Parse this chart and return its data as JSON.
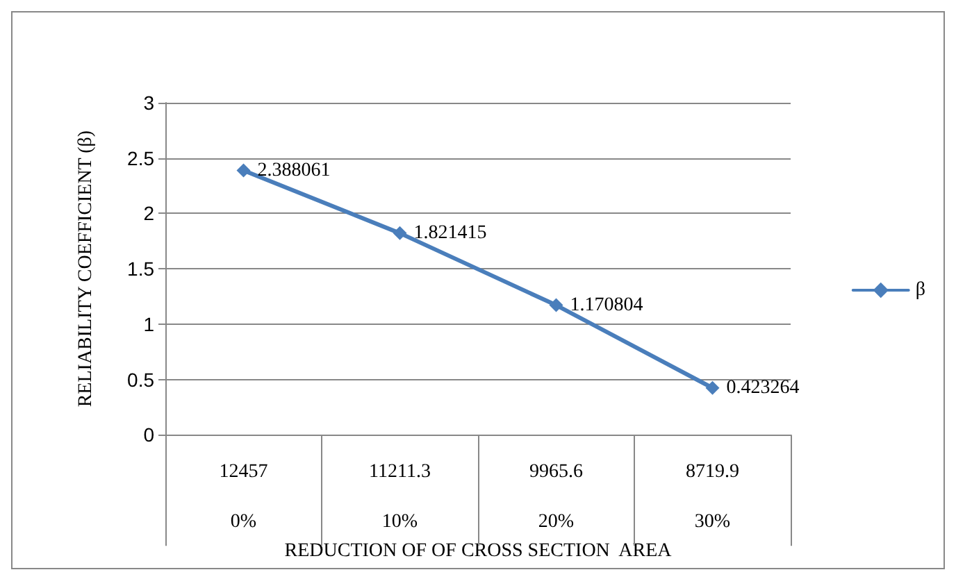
{
  "chart_data": {
    "type": "line",
    "xlabel": "REDUCTION OF OF CROSS SECTION  AREA",
    "ylabel": "RELIABILITY COEFFICIENT (β)",
    "categories": [
      "12457\n\n0%",
      "11211.3\n\n10%",
      "9965.6\n\n20%",
      "8719.9\n\n30%"
    ],
    "series": [
      {
        "name": "β",
        "color": "#4a7ebb",
        "values": [
          2.388061,
          1.821415,
          1.170804,
          0.423264
        ]
      }
    ],
    "ylim": [
      0,
      3
    ],
    "yticks": [
      0,
      0.5,
      1,
      1.5,
      2,
      2.5,
      3
    ],
    "grid": "y",
    "legend": "right",
    "marker": "diamond",
    "line_style": "solid",
    "data_labels": true
  }
}
